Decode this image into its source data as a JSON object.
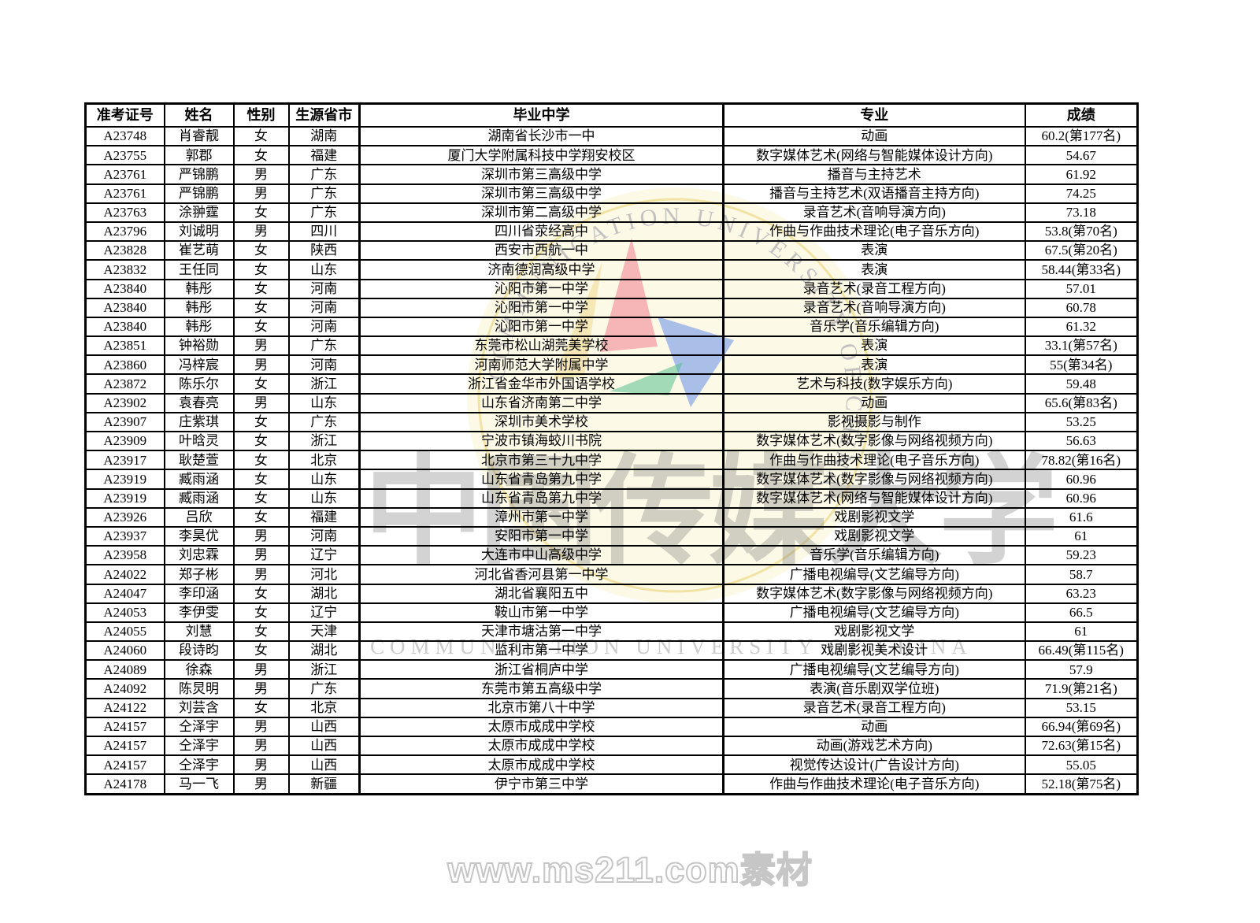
{
  "table": {
    "columns": [
      "准考证号",
      "姓名",
      "性别",
      "生源省市",
      "毕业中学",
      "专业",
      "成绩"
    ],
    "column_keys": [
      "exam-id",
      "name",
      "gender",
      "province",
      "school",
      "major",
      "score"
    ],
    "rows": [
      [
        "A23748",
        "肖睿靓",
        "女",
        "湖南",
        "湖南省长沙市一中",
        "动画",
        "60.2(第177名)"
      ],
      [
        "A23755",
        "郭郡",
        "女",
        "福建",
        "厦门大学附属科技中学翔安校区",
        "数字媒体艺术(网络与智能媒体设计方向)",
        "54.67"
      ],
      [
        "A23761",
        "严锦鹏",
        "男",
        "广东",
        "深圳市第三高级中学",
        "播音与主持艺术",
        "61.92"
      ],
      [
        "A23761",
        "严锦鹏",
        "男",
        "广东",
        "深圳市第三高级中学",
        "播音与主持艺术(双语播音主持方向)",
        "74.25"
      ],
      [
        "A23763",
        "涂翀霆",
        "女",
        "广东",
        "深圳市第二高级中学",
        "录音艺术(音响导演方向)",
        "73.18"
      ],
      [
        "A23796",
        "刘诚明",
        "男",
        "四川",
        "四川省荥经高中",
        "作曲与作曲技术理论(电子音乐方向)",
        "53.8(第70名)"
      ],
      [
        "A23828",
        "崔艺萌",
        "女",
        "陕西",
        "西安市西航一中",
        "表演",
        "67.5(第20名)"
      ],
      [
        "A23832",
        "王任同",
        "女",
        "山东",
        "济南德润高级中学",
        "表演",
        "58.44(第33名)"
      ],
      [
        "A23840",
        "韩彤",
        "女",
        "河南",
        "沁阳市第一中学",
        "录音艺术(录音工程方向)",
        "57.01"
      ],
      [
        "A23840",
        "韩彤",
        "女",
        "河南",
        "沁阳市第一中学",
        "录音艺术(音响导演方向)",
        "60.78"
      ],
      [
        "A23840",
        "韩彤",
        "女",
        "河南",
        "沁阳市第一中学",
        "音乐学(音乐编辑方向)",
        "61.32"
      ],
      [
        "A23851",
        "钟裕勋",
        "男",
        "广东",
        "东莞市松山湖莞美学校",
        "表演",
        "33.1(第57名)"
      ],
      [
        "A23860",
        "冯梓宸",
        "男",
        "河南",
        "河南师范大学附属中学",
        "表演",
        "55(第34名)"
      ],
      [
        "A23872",
        "陈乐尔",
        "女",
        "浙江",
        "浙江省金华市外国语学校",
        "艺术与科技(数字娱乐方向)",
        "59.48"
      ],
      [
        "A23902",
        "袁春亮",
        "男",
        "山东",
        "山东省济南第二中学",
        "动画",
        "65.6(第83名)"
      ],
      [
        "A23907",
        "庄紫琪",
        "女",
        "广东",
        "深圳市美术学校",
        "影视摄影与制作",
        "53.25"
      ],
      [
        "A23909",
        "叶晗灵",
        "女",
        "浙江",
        "宁波市镇海蛟川书院",
        "数字媒体艺术(数字影像与网络视频方向)",
        "56.63"
      ],
      [
        "A23917",
        "耿楚萱",
        "女",
        "北京",
        "北京市第三十九中学",
        "作曲与作曲技术理论(电子音乐方向)",
        "78.82(第16名)"
      ],
      [
        "A23919",
        "臧雨涵",
        "女",
        "山东",
        "山东省青岛第九中学",
        "数字媒体艺术(数字影像与网络视频方向)",
        "60.96"
      ],
      [
        "A23919",
        "臧雨涵",
        "女",
        "山东",
        "山东省青岛第九中学",
        "数字媒体艺术(网络与智能媒体设计方向)",
        "60.96"
      ],
      [
        "A23926",
        "吕欣",
        "女",
        "福建",
        "漳州市第一中学",
        "戏剧影视文学",
        "61.6"
      ],
      [
        "A23937",
        "李昊优",
        "男",
        "河南",
        "安阳市第一中学",
        "戏剧影视文学",
        "61"
      ],
      [
        "A23958",
        "刘忠霖",
        "男",
        "辽宁",
        "大连市中山高级中学",
        "音乐学(音乐编辑方向)",
        "59.23"
      ],
      [
        "A24022",
        "郑子彬",
        "男",
        "河北",
        "河北省香河县第一中学",
        "广播电视编导(文艺编导方向)",
        "58.7"
      ],
      [
        "A24047",
        "李印涵",
        "女",
        "湖北",
        "湖北省襄阳五中",
        "数字媒体艺术(数字影像与网络视频方向)",
        "63.23"
      ],
      [
        "A24053",
        "李伊雯",
        "女",
        "辽宁",
        "鞍山市第一中学",
        "广播电视编导(文艺编导方向)",
        "66.5"
      ],
      [
        "A24055",
        "刘慧",
        "女",
        "天津",
        "天津市塘沽第一中学",
        "戏剧影视文学",
        "61"
      ],
      [
        "A24060",
        "段诗昀",
        "女",
        "湖北",
        "监利市第一中学",
        "戏剧影视美术设计",
        "66.49(第115名)"
      ],
      [
        "A24089",
        "徐森",
        "男",
        "浙江",
        "浙江省桐庐中学",
        "广播电视编导(文艺编导方向)",
        "57.9"
      ],
      [
        "A24092",
        "陈炅明",
        "男",
        "广东",
        "东莞市第五高级中学",
        "表演(音乐剧双学位班)",
        "71.9(第21名)"
      ],
      [
        "A24122",
        "刘芸含",
        "女",
        "北京",
        "北京市第八十中学",
        "录音艺术(录音工程方向)",
        "53.15"
      ],
      [
        "A24157",
        "仝泽宇",
        "男",
        "山西",
        "太原市成成中学校",
        "动画",
        "66.94(第69名)"
      ],
      [
        "A24157",
        "仝泽宇",
        "男",
        "山西",
        "太原市成成中学校",
        "动画(游戏艺术方向)",
        "72.63(第15名)"
      ],
      [
        "A24157",
        "仝泽宇",
        "男",
        "山西",
        "太原市成成中学校",
        "视觉传达设计(广告设计方向)",
        "55.05"
      ],
      [
        "A24178",
        "马一飞",
        "男",
        "新疆",
        "伊宁市第三中学",
        "作曲与作曲技术理论(电子音乐方向)",
        "52.18(第75名)"
      ]
    ]
  },
  "watermarks": {
    "emblem_arc_text": "COMMUNICATION UNIVERSITY OF CHINA",
    "calligraphy_text": "中国传媒大学",
    "latin_text": "COMMUNICATION UNIVERSITY OF CHINA",
    "site_text": "www.ms211.com素材",
    "colors": {
      "circle_fill": "#fdf8e1",
      "ring": "#f0e09c",
      "red_triangle": "#f08090",
      "blue_triangle": "#5585e8",
      "green_triangle": "#58c08e",
      "yellow_triangle": "#f0d890",
      "arc_text": "#b9b9b9"
    }
  }
}
